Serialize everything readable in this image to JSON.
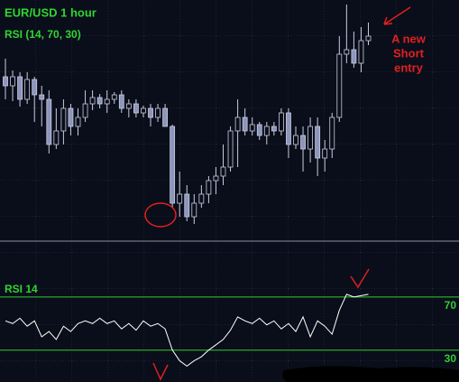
{
  "chart_data": [
    {
      "type": "candlestick",
      "title": "EUR/USD 1 hour",
      "subtitle": "RSI (14, 70, 30)",
      "annotation": [
        "A new",
        "Short",
        "entry"
      ],
      "open": [
        175,
        165,
        175,
        150,
        172,
        155,
        150,
        100,
        115,
        140,
        120,
        130,
        145,
        152,
        145,
        150,
        155,
        140,
        145,
        135,
        140,
        130,
        140,
        120,
        35,
        45,
        20,
        35,
        45,
        60,
        65,
        75,
        115,
        130,
        115,
        122,
        110,
        120,
        115,
        135,
        100,
        110,
        95,
        120,
        85,
        95,
        130,
        200,
        205,
        190,
        215
      ],
      "high": [
        195,
        182,
        180,
        180,
        175,
        165,
        160,
        140,
        150,
        145,
        140,
        160,
        160,
        156,
        160,
        158,
        160,
        150,
        150,
        143,
        145,
        145,
        145,
        122,
        70,
        55,
        45,
        55,
        65,
        75,
        100,
        120,
        150,
        140,
        130,
        125,
        125,
        125,
        140,
        140,
        120,
        120,
        130,
        130,
        105,
        135,
        220,
        255,
        225,
        230,
        235
      ],
      "low": [
        150,
        148,
        142,
        145,
        125,
        120,
        90,
        95,
        100,
        110,
        110,
        125,
        138,
        140,
        135,
        145,
        135,
        130,
        130,
        130,
        120,
        125,
        120,
        30,
        20,
        15,
        12,
        30,
        35,
        45,
        55,
        70,
        75,
        110,
        110,
        105,
        100,
        110,
        110,
        85,
        95,
        70,
        80,
        65,
        70,
        85,
        125,
        190,
        185,
        180,
        210
      ],
      "close": [
        165,
        175,
        150,
        172,
        155,
        150,
        100,
        115,
        140,
        120,
        130,
        145,
        152,
        145,
        150,
        155,
        140,
        145,
        135,
        140,
        130,
        140,
        120,
        35,
        45,
        20,
        35,
        45,
        60,
        65,
        75,
        115,
        130,
        115,
        122,
        110,
        120,
        115,
        135,
        100,
        110,
        95,
        120,
        85,
        95,
        130,
        200,
        205,
        190,
        215,
        220
      ],
      "up_color": "#0a0e1a",
      "down_color": "#8c96bc",
      "ylim": [
        0,
        260
      ]
    },
    {
      "type": "line",
      "title": "RSI 14",
      "values": [
        52,
        50,
        54,
        48,
        52,
        40,
        44,
        38,
        48,
        44,
        50,
        52,
        50,
        54,
        50,
        52,
        46,
        50,
        45,
        52,
        48,
        50,
        46,
        30,
        22,
        18,
        22,
        25,
        30,
        34,
        38,
        45,
        55,
        52,
        50,
        54,
        49,
        52,
        46,
        50,
        44,
        55,
        40,
        52,
        48,
        42,
        60,
        72,
        70,
        71,
        72
      ],
      "color": "#ffffff",
      "level_color": "#33cc33",
      "ylim": [
        6,
        110
      ],
      "yticks": [
        70,
        30
      ]
    }
  ]
}
